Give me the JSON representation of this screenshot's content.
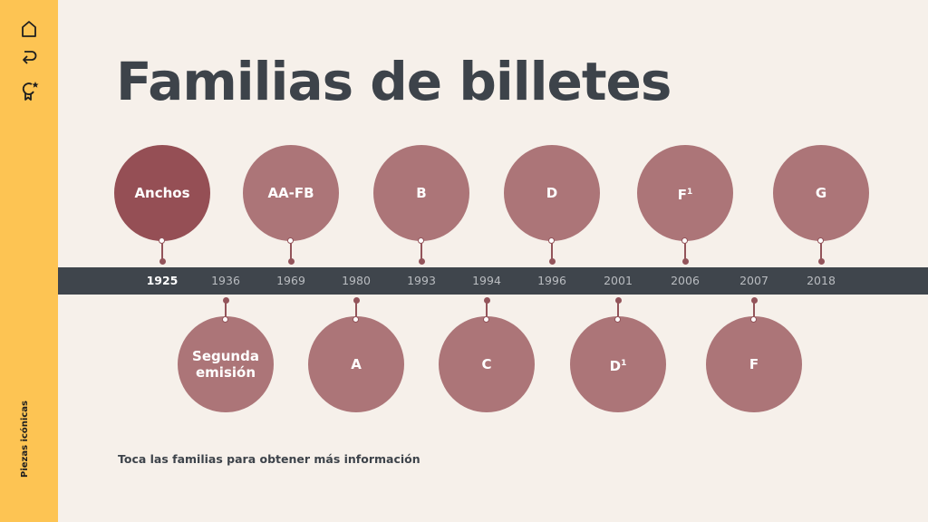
{
  "sidebar": {
    "icons": [
      "home-icon",
      "back-icon",
      "award-icon"
    ],
    "label": "Piezas icónicas",
    "color": "#fdc453"
  },
  "title": "Familias de billetes",
  "timeline": {
    "years": [
      "1925",
      "1936",
      "1969",
      "1980",
      "1993",
      "1994",
      "1996",
      "2001",
      "2006",
      "2007",
      "2018"
    ],
    "active_year": "1925"
  },
  "families": [
    {
      "name": "Anchos",
      "year": "1925",
      "position": "top",
      "active": true
    },
    {
      "name": "Segunda emisión",
      "line1": "Segunda",
      "line2": "emisión",
      "year": "1936",
      "position": "bottom"
    },
    {
      "name": "AA-FB",
      "year": "1969",
      "position": "top"
    },
    {
      "name": "A",
      "year": "1980",
      "position": "bottom"
    },
    {
      "name": "B",
      "year": "1993",
      "position": "top"
    },
    {
      "name": "C",
      "year": "1994",
      "position": "bottom"
    },
    {
      "name": "D",
      "year": "1996",
      "position": "top"
    },
    {
      "name": "D",
      "sup": "1",
      "year": "2001",
      "position": "bottom"
    },
    {
      "name": "F",
      "sup": "1",
      "year": "2006",
      "position": "top"
    },
    {
      "name": "F",
      "year": "2007",
      "position": "bottom"
    },
    {
      "name": "G",
      "year": "2018",
      "position": "top"
    }
  ],
  "hint": "Toca las familias para obtener más información",
  "colors": {
    "background": "#f6f0ea",
    "bar": "#3f454c",
    "node": "#ac7578",
    "node_active": "#954f55",
    "title": "#3d434a"
  }
}
